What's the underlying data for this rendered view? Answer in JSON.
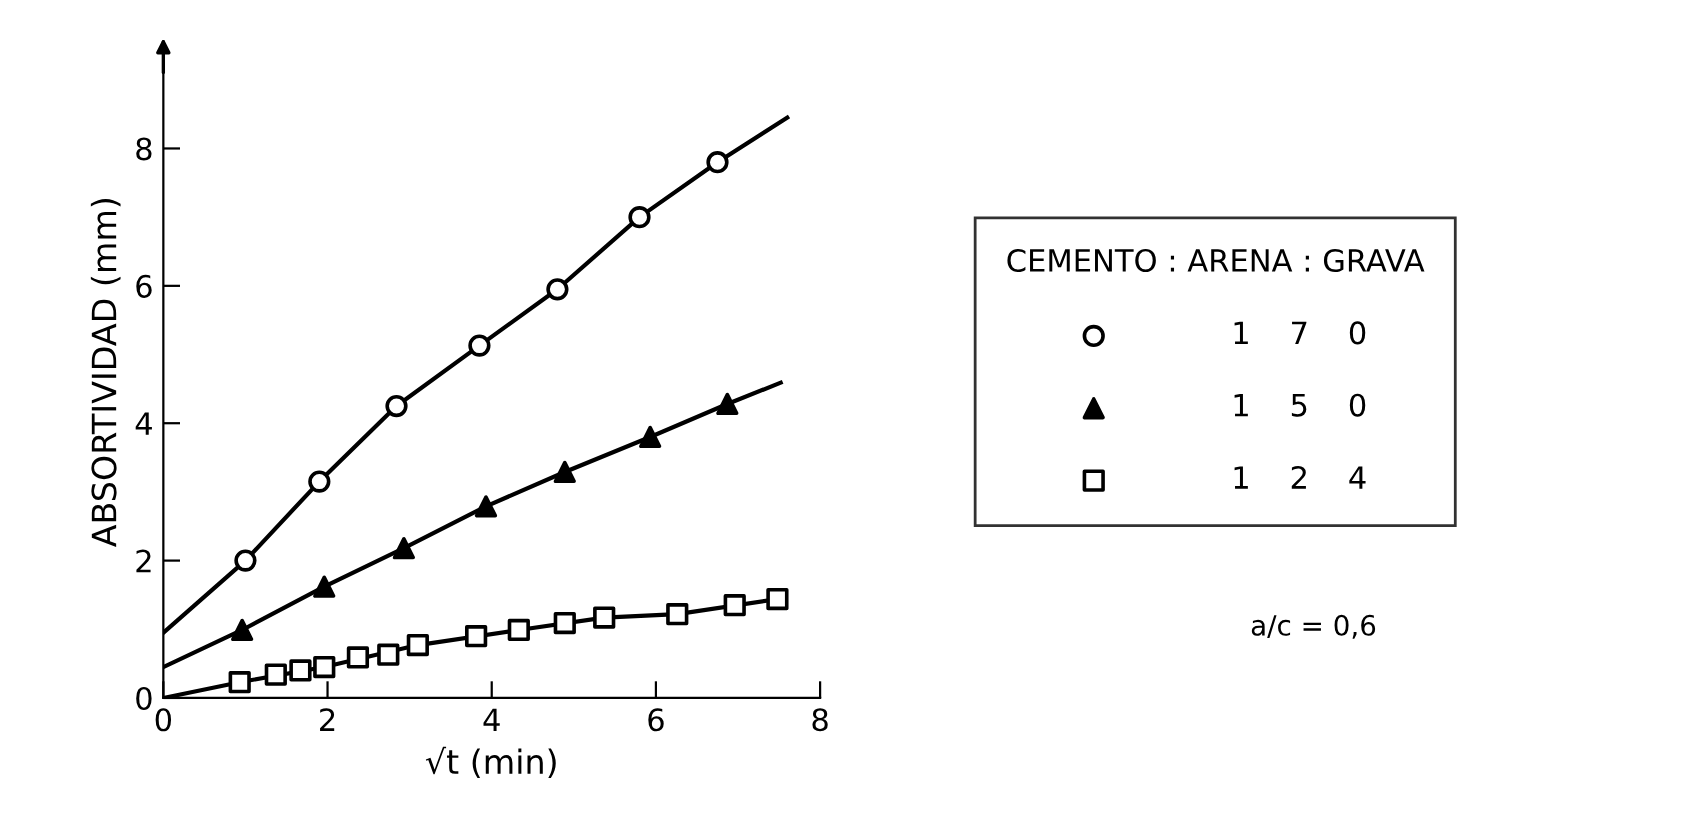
{
  "chart_data": {
    "type": "line",
    "xlabel": "√t (min)",
    "ylabel": "ABSORTIVIDAD (mm)",
    "xlim": [
      0,
      8
    ],
    "ylim": [
      0,
      9.5
    ],
    "xticks": [
      0,
      2,
      4,
      6,
      8
    ],
    "yticks": [
      0,
      2,
      4,
      6,
      8
    ],
    "grid": false,
    "legend": "right",
    "legend_title": "CEMENTO : ARENA : GRAVA",
    "series": [
      {
        "type": "scatter",
        "name": "1    7    0",
        "color": "#000000",
        "marker": "circle",
        "x": [
          1,
          1.9,
          2.84,
          3.85,
          4.8,
          5.8,
          6.75
        ],
        "values": [
          2.0,
          3.15,
          4.25,
          5.13,
          5.95,
          7.0,
          7.8
        ]
      },
      {
        "type": "scatter",
        "name": "1    5    0",
        "color": "#000000",
        "marker": "triangle",
        "x": [
          0.96,
          1.96,
          2.93,
          3.93,
          4.89,
          5.93,
          6.87
        ],
        "values": [
          0.99,
          1.62,
          2.18,
          2.79,
          3.29,
          3.8,
          4.28
        ]
      },
      {
        "type": "scatter",
        "name": "1    2    4",
        "color": "#000000",
        "marker": "square",
        "x": [
          0.93,
          1.37,
          1.67,
          1.96,
          2.37,
          2.74,
          3.1,
          3.81,
          4.33,
          4.89,
          5.37,
          6.26,
          6.96,
          7.48
        ],
        "values": [
          0.23,
          0.34,
          0.4,
          0.45,
          0.59,
          0.63,
          0.77,
          0.9,
          0.99,
          1.09,
          1.17,
          1.22,
          1.35,
          1.44
        ]
      },
      {
        "color": "#000000",
        "marker": "none",
        "x": [
          0,
          1,
          1.9,
          2.84,
          3.85,
          4.8,
          5.8,
          6.75,
          7.6
        ],
        "values": [
          0.95,
          2.0,
          3.15,
          4.25,
          5.13,
          5.95,
          7.0,
          7.8,
          8.45
        ]
      },
      {
        "color": "#000000",
        "marker": "none",
        "x": [
          0,
          0.96,
          1.96,
          2.93,
          3.93,
          4.89,
          5.93,
          6.87,
          7.52
        ],
        "values": [
          0.45,
          0.99,
          1.62,
          2.18,
          2.79,
          3.29,
          3.8,
          4.28,
          4.59
        ]
      },
      {
        "color": "#000000",
        "marker": "none",
        "x": [
          0,
          0.93,
          1.96,
          3.1,
          4.33,
          5.37,
          6.26,
          7.48
        ],
        "values": [
          0,
          0.23,
          0.45,
          0.77,
          0.99,
          1.17,
          1.22,
          1.44
        ]
      }
    ],
    "annotations": [
      "a/c = 0,6"
    ]
  }
}
